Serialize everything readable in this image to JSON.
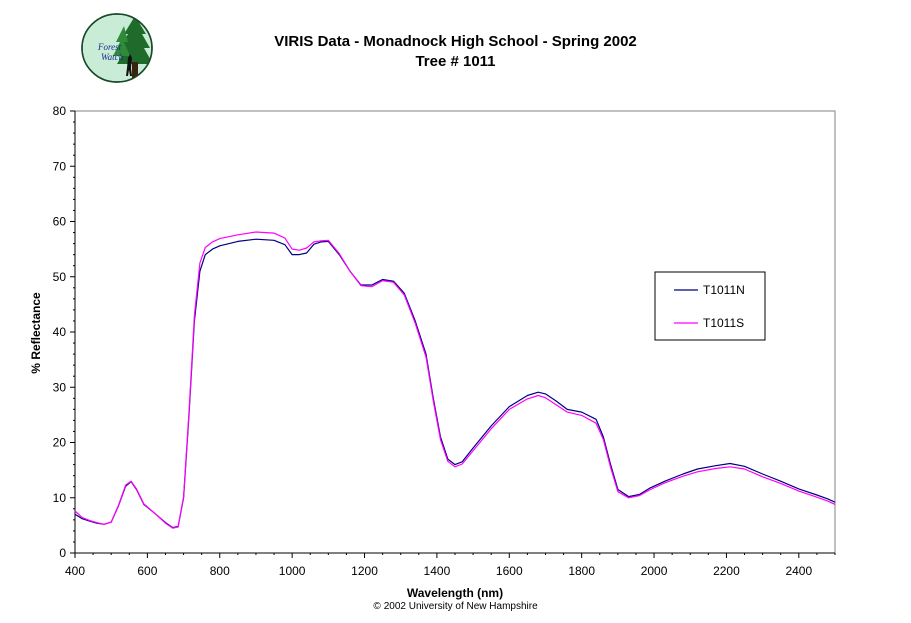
{
  "logo": {
    "text_line1": "Forest",
    "text_line2": "Watch"
  },
  "copyright": {
    "symbol": "©",
    "text": "2002 University of New Hampshire"
  },
  "chart_data": {
    "type": "line",
    "title": "VIRIS Data - Monadnock High School - Spring 2002",
    "subtitle": "Tree # 1011",
    "xlabel": "Wavelength (nm)",
    "ylabel": "% Reflectance",
    "xlim": [
      400,
      2500
    ],
    "ylim": [
      0,
      80
    ],
    "xticks": [
      400,
      600,
      800,
      1000,
      1200,
      1400,
      1600,
      1800,
      2000,
      2200,
      2400
    ],
    "yticks": [
      0,
      10,
      20,
      30,
      40,
      50,
      60,
      70,
      80
    ],
    "grid": false,
    "legend_position": "right",
    "series": [
      {
        "name": "T1011N",
        "color": "#000080",
        "x": [
          400,
          420,
          440,
          460,
          480,
          500,
          520,
          540,
          555,
          570,
          590,
          620,
          650,
          670,
          685,
          700,
          715,
          730,
          745,
          760,
          780,
          800,
          850,
          900,
          950,
          980,
          1000,
          1020,
          1040,
          1060,
          1080,
          1100,
          1130,
          1160,
          1190,
          1220,
          1250,
          1280,
          1310,
          1340,
          1370,
          1390,
          1410,
          1430,
          1450,
          1470,
          1500,
          1550,
          1600,
          1650,
          1680,
          1700,
          1730,
          1760,
          1800,
          1840,
          1860,
          1880,
          1900,
          1930,
          1960,
          1990,
          2030,
          2080,
          2120,
          2170,
          2210,
          2250,
          2300,
          2350,
          2400,
          2450,
          2480,
          2500
        ],
        "y": [
          7,
          6.2,
          5.8,
          5.4,
          5.2,
          5.6,
          8.5,
          12.1,
          12.9,
          11.5,
          8.8,
          7.2,
          5.5,
          4.6,
          4.8,
          10,
          25,
          42,
          51,
          54,
          55,
          55.6,
          56.4,
          56.8,
          56.6,
          55.8,
          54,
          54,
          54.3,
          55.9,
          56.3,
          56.4,
          54,
          51,
          48.5,
          48.5,
          49.5,
          49.2,
          47,
          42,
          36,
          28,
          21,
          17,
          16,
          16.5,
          19,
          23,
          26.5,
          28.5,
          29.1,
          28.8,
          27.5,
          26,
          25.5,
          24.2,
          21,
          16,
          11.5,
          10.2,
          10.6,
          11.8,
          13,
          14.3,
          15.2,
          15.8,
          16.2,
          15.7,
          14.3,
          13,
          11.6,
          10.5,
          9.8,
          9.2
        ]
      },
      {
        "name": "T1011S",
        "color": "#ff00ff",
        "x": [
          400,
          420,
          440,
          460,
          480,
          500,
          520,
          540,
          555,
          570,
          590,
          620,
          650,
          670,
          685,
          700,
          715,
          730,
          745,
          760,
          780,
          800,
          850,
          900,
          950,
          980,
          1000,
          1020,
          1040,
          1060,
          1080,
          1100,
          1130,
          1160,
          1190,
          1220,
          1250,
          1280,
          1310,
          1340,
          1370,
          1390,
          1410,
          1430,
          1450,
          1470,
          1500,
          1550,
          1600,
          1650,
          1680,
          1700,
          1730,
          1760,
          1800,
          1840,
          1860,
          1880,
          1900,
          1930,
          1960,
          1990,
          2030,
          2080,
          2120,
          2170,
          2210,
          2250,
          2300,
          2350,
          2400,
          2450,
          2480,
          2500
        ],
        "y": [
          7.6,
          6.4,
          5.9,
          5.5,
          5.2,
          5.6,
          8.6,
          12.3,
          13,
          11.6,
          8.9,
          7.2,
          5.4,
          4.5,
          4.7,
          10.2,
          25.5,
          43,
          52.5,
          55.3,
          56.3,
          56.9,
          57.6,
          58.1,
          57.9,
          57,
          55,
          54.8,
          55.2,
          56.3,
          56.5,
          56.6,
          54.2,
          51,
          48.4,
          48.2,
          49.3,
          49,
          46.7,
          41.6,
          35.5,
          27.5,
          20.5,
          16.6,
          15.6,
          16.1,
          18.5,
          22.5,
          26,
          27.9,
          28.5,
          28.1,
          26.8,
          25.5,
          24.9,
          23.5,
          20.5,
          15.5,
          11.1,
          10,
          10.4,
          11.5,
          12.7,
          13.9,
          14.7,
          15.3,
          15.6,
          15.2,
          13.8,
          12.6,
          11.2,
          10.1,
          9.4,
          8.8
        ]
      }
    ]
  }
}
